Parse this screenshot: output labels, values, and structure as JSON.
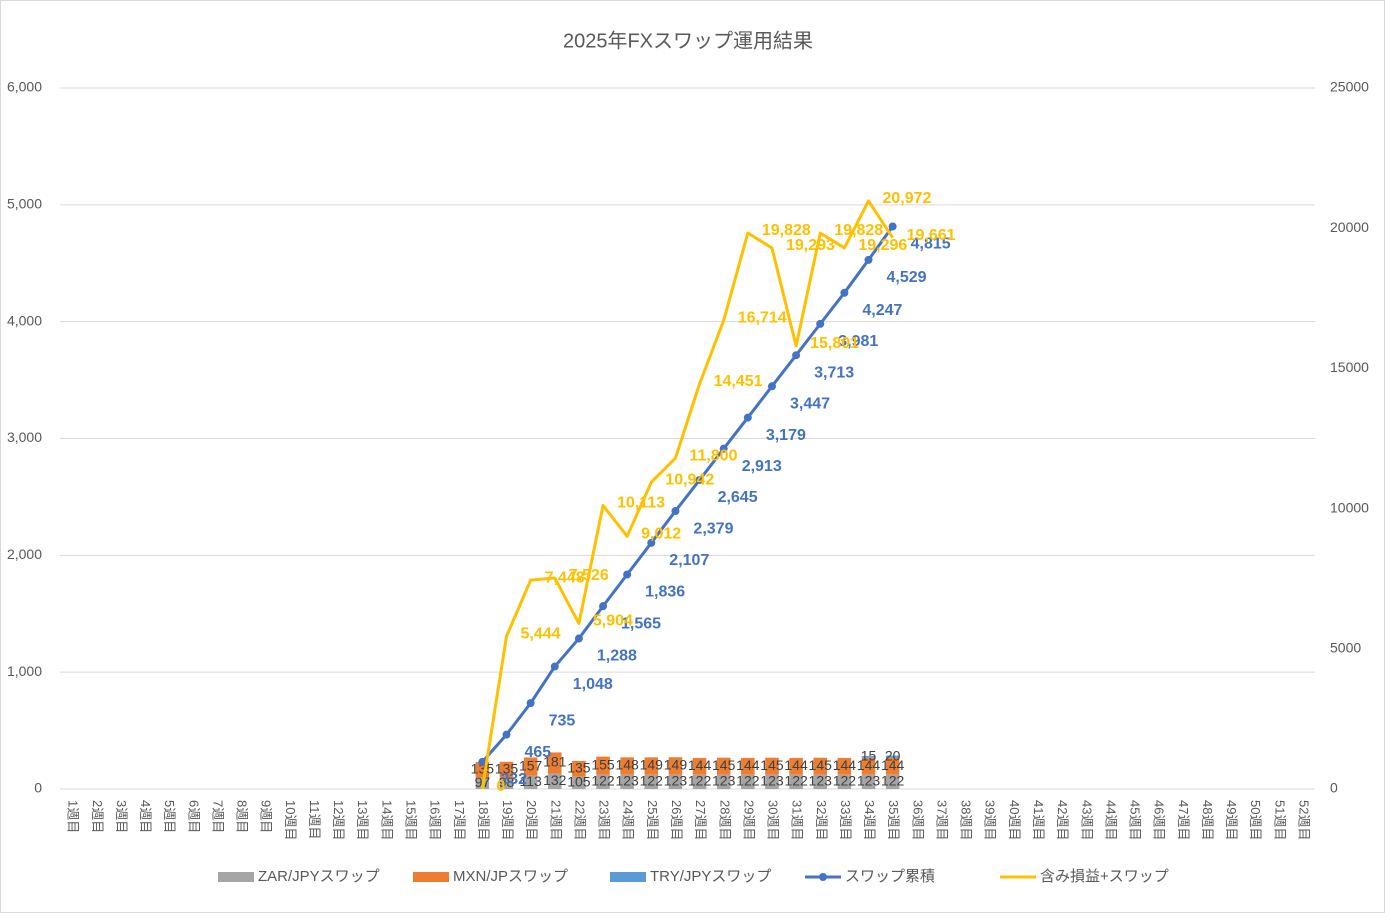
{
  "chart_data": {
    "type": "combo",
    "title": "2025年FXスワップ運用結果",
    "categories": [
      "1週目",
      "2週目",
      "3週目",
      "4週目",
      "5週目",
      "6週目",
      "7週目",
      "8週目",
      "9週目",
      "10週目",
      "11週目",
      "12週目",
      "13週目",
      "14週目",
      "15週目",
      "16週目",
      "17週目",
      "18週目",
      "19週目",
      "20週目",
      "21週目",
      "22週目",
      "23週目",
      "24週目",
      "25週目",
      "26週目",
      "27週目",
      "28週目",
      "29週目",
      "30週目",
      "31週目",
      "32週目",
      "33週目",
      "34週目",
      "35週目",
      "36週目",
      "37週目",
      "38週目",
      "39週目",
      "40週目",
      "41週目",
      "42週目",
      "43週目",
      "44週目",
      "45週目",
      "46週目",
      "47週目",
      "48週目",
      "49週目",
      "50週目",
      "51週目",
      "52週目"
    ],
    "ylim": [
      0,
      6000
    ],
    "yticks": [
      0,
      {
        "value": 1000,
        "label": "1,000"
      },
      {
        "value": 2000,
        "label": "2,000"
      },
      {
        "value": 3000,
        "label": "3,000"
      },
      {
        "value": 4000,
        "label": "4,000"
      },
      {
        "value": 5000,
        "label": "5,000"
      },
      {
        "value": 6000,
        "label": "6,000"
      }
    ],
    "y2lim": [
      0,
      25000
    ],
    "y2ticks": [
      0,
      5000,
      10000,
      15000,
      20000,
      25000
    ],
    "grid": true,
    "legend": "bottom",
    "series": [
      {
        "name": "ZAR/JPYスワップ",
        "type": "bar",
        "color": "#a5a5a5",
        "values": [
          null,
          null,
          null,
          null,
          null,
          null,
          null,
          null,
          null,
          null,
          null,
          null,
          null,
          null,
          null,
          null,
          null,
          97,
          98,
          113,
          132,
          105,
          122,
          123,
          122,
          123,
          122,
          123,
          122,
          123,
          122,
          123,
          122,
          123,
          122,
          null,
          null,
          null,
          null,
          null,
          null,
          null,
          null,
          null,
          null,
          null,
          null,
          null,
          null,
          null,
          null,
          null
        ]
      },
      {
        "name": "MXN/JPスワップ",
        "type": "bar",
        "color": "#ed7d31",
        "values": [
          null,
          null,
          null,
          null,
          null,
          null,
          null,
          null,
          null,
          null,
          null,
          null,
          null,
          null,
          null,
          null,
          null,
          135,
          135,
          157,
          181,
          135,
          155,
          148,
          149,
          149,
          144,
          145,
          144,
          145,
          144,
          145,
          144,
          144,
          144,
          null,
          null,
          null,
          null,
          null,
          null,
          null,
          null,
          null,
          null,
          null,
          null,
          null,
          null,
          null,
          null,
          null
        ]
      },
      {
        "name": "TRY/JPYスワップ",
        "type": "bar",
        "color": "#5b9bd5",
        "values": [
          null,
          null,
          null,
          null,
          null,
          null,
          null,
          null,
          null,
          null,
          null,
          null,
          null,
          null,
          null,
          null,
          null,
          null,
          null,
          null,
          null,
          null,
          null,
          null,
          null,
          null,
          null,
          null,
          null,
          null,
          null,
          null,
          null,
          15,
          20,
          null,
          null,
          null,
          null,
          null,
          null,
          null,
          null,
          null,
          null,
          null,
          null,
          null,
          null,
          null,
          null,
          null
        ]
      },
      {
        "name": "スワップ累積",
        "type": "line",
        "marker": true,
        "color": "#4472c4",
        "values": [
          null,
          null,
          null,
          null,
          null,
          null,
          null,
          null,
          null,
          null,
          null,
          null,
          null,
          null,
          null,
          null,
          null,
          232,
          465,
          735,
          1048,
          1288,
          1565,
          1836,
          2107,
          2379,
          2645,
          2913,
          3179,
          3447,
          3713,
          3981,
          4247,
          4529,
          4815,
          null,
          null,
          null,
          null,
          null,
          null,
          null,
          null,
          null,
          null,
          null,
          null,
          null,
          null,
          null,
          null,
          null
        ],
        "value_labels": [
          null,
          null,
          null,
          null,
          null,
          null,
          null,
          null,
          null,
          null,
          null,
          null,
          null,
          null,
          null,
          null,
          null,
          "232",
          "465",
          "735",
          "1,048",
          "1,288",
          "1,565",
          "1,836",
          "2,107",
          "2,379",
          "2,645",
          "2,913",
          "3,179",
          "3,447",
          "3,713",
          "3,981",
          "4,247",
          "4,529",
          "4,815",
          null,
          null,
          null,
          null,
          null,
          null,
          null,
          null,
          null,
          null,
          null,
          null,
          null,
          null,
          null,
          null,
          null
        ]
      },
      {
        "name": "含み損益+スワップ",
        "type": "line",
        "axis": "y2",
        "color": "#ffc000",
        "values": [
          null,
          null,
          null,
          null,
          null,
          null,
          null,
          null,
          null,
          null,
          null,
          null,
          null,
          null,
          null,
          null,
          null,
          0,
          5444,
          7448,
          7526,
          5904,
          10113,
          9012,
          10942,
          11800,
          14451,
          16714,
          19828,
          19293,
          15801,
          19828,
          19296,
          20972,
          19661,
          null,
          null,
          null,
          null,
          null,
          null,
          null,
          null,
          null,
          null,
          null,
          null,
          null,
          null,
          null,
          null,
          null
        ],
        "value_labels": [
          null,
          null,
          null,
          null,
          null,
          null,
          null,
          null,
          null,
          null,
          null,
          null,
          null,
          null,
          null,
          null,
          null,
          "0",
          "5,444",
          "7,448",
          "7,526",
          "5,904",
          "10,113",
          "9,012",
          "10,942",
          "11,800",
          "14,451",
          "16,714",
          "19,828",
          "19,293",
          "15,801",
          "19,828",
          "19,296",
          "20,972",
          "19,661",
          null,
          null,
          null,
          null,
          null,
          null,
          null,
          null,
          null,
          null,
          null,
          null,
          null,
          null,
          null,
          null,
          null
        ]
      }
    ]
  }
}
